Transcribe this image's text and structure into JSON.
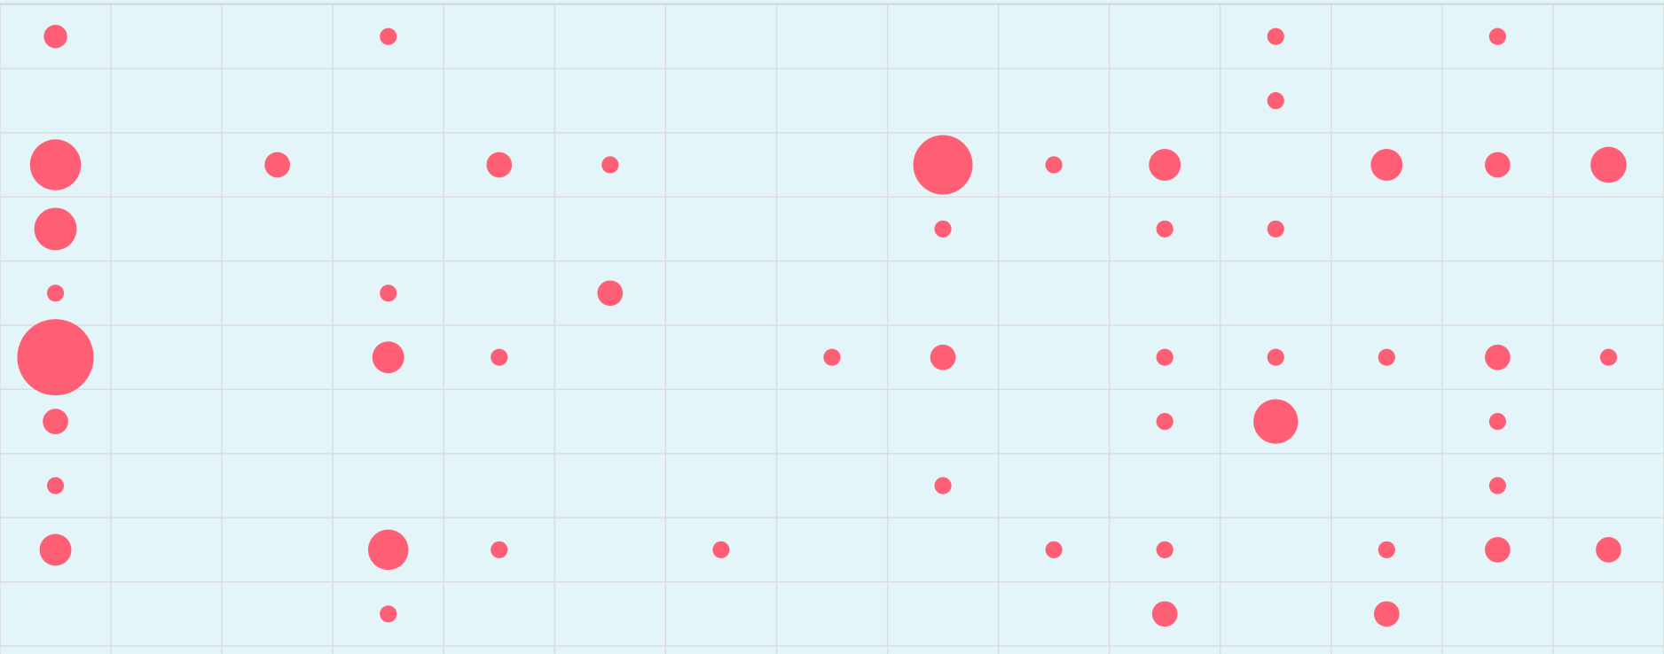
{
  "chart_data": {
    "type": "bubble_grid",
    "color": "#ff5f75",
    "grid": true,
    "values": [
      [
        11,
        null,
        null,
        8,
        null,
        null,
        null,
        null,
        null,
        null,
        null,
        8,
        null,
        8,
        null
      ],
      [
        null,
        null,
        null,
        null,
        null,
        null,
        null,
        null,
        null,
        null,
        null,
        8,
        null,
        null,
        null
      ],
      [
        24,
        null,
        12,
        null,
        12,
        8,
        null,
        null,
        28,
        8,
        15,
        null,
        15,
        12,
        17
      ],
      [
        20,
        null,
        null,
        null,
        null,
        null,
        null,
        null,
        8,
        null,
        8,
        8,
        null,
        null,
        null
      ],
      [
        8,
        null,
        null,
        8,
        null,
        12,
        null,
        null,
        null,
        null,
        null,
        null,
        null,
        null,
        null
      ],
      [
        36,
        null,
        null,
        15,
        8,
        null,
        null,
        8,
        12,
        null,
        8,
        8,
        8,
        12,
        8
      ],
      [
        12,
        null,
        null,
        null,
        null,
        null,
        null,
        null,
        null,
        null,
        8,
        21,
        null,
        8,
        null
      ],
      [
        8,
        null,
        null,
        null,
        null,
        null,
        null,
        null,
        8,
        null,
        null,
        null,
        null,
        8,
        null
      ],
      [
        15,
        null,
        null,
        19,
        8,
        null,
        8,
        null,
        null,
        8,
        8,
        null,
        8,
        12,
        12
      ],
      [
        null,
        null,
        null,
        8,
        null,
        null,
        null,
        null,
        null,
        null,
        12,
        null,
        12,
        null,
        null
      ]
    ]
  }
}
